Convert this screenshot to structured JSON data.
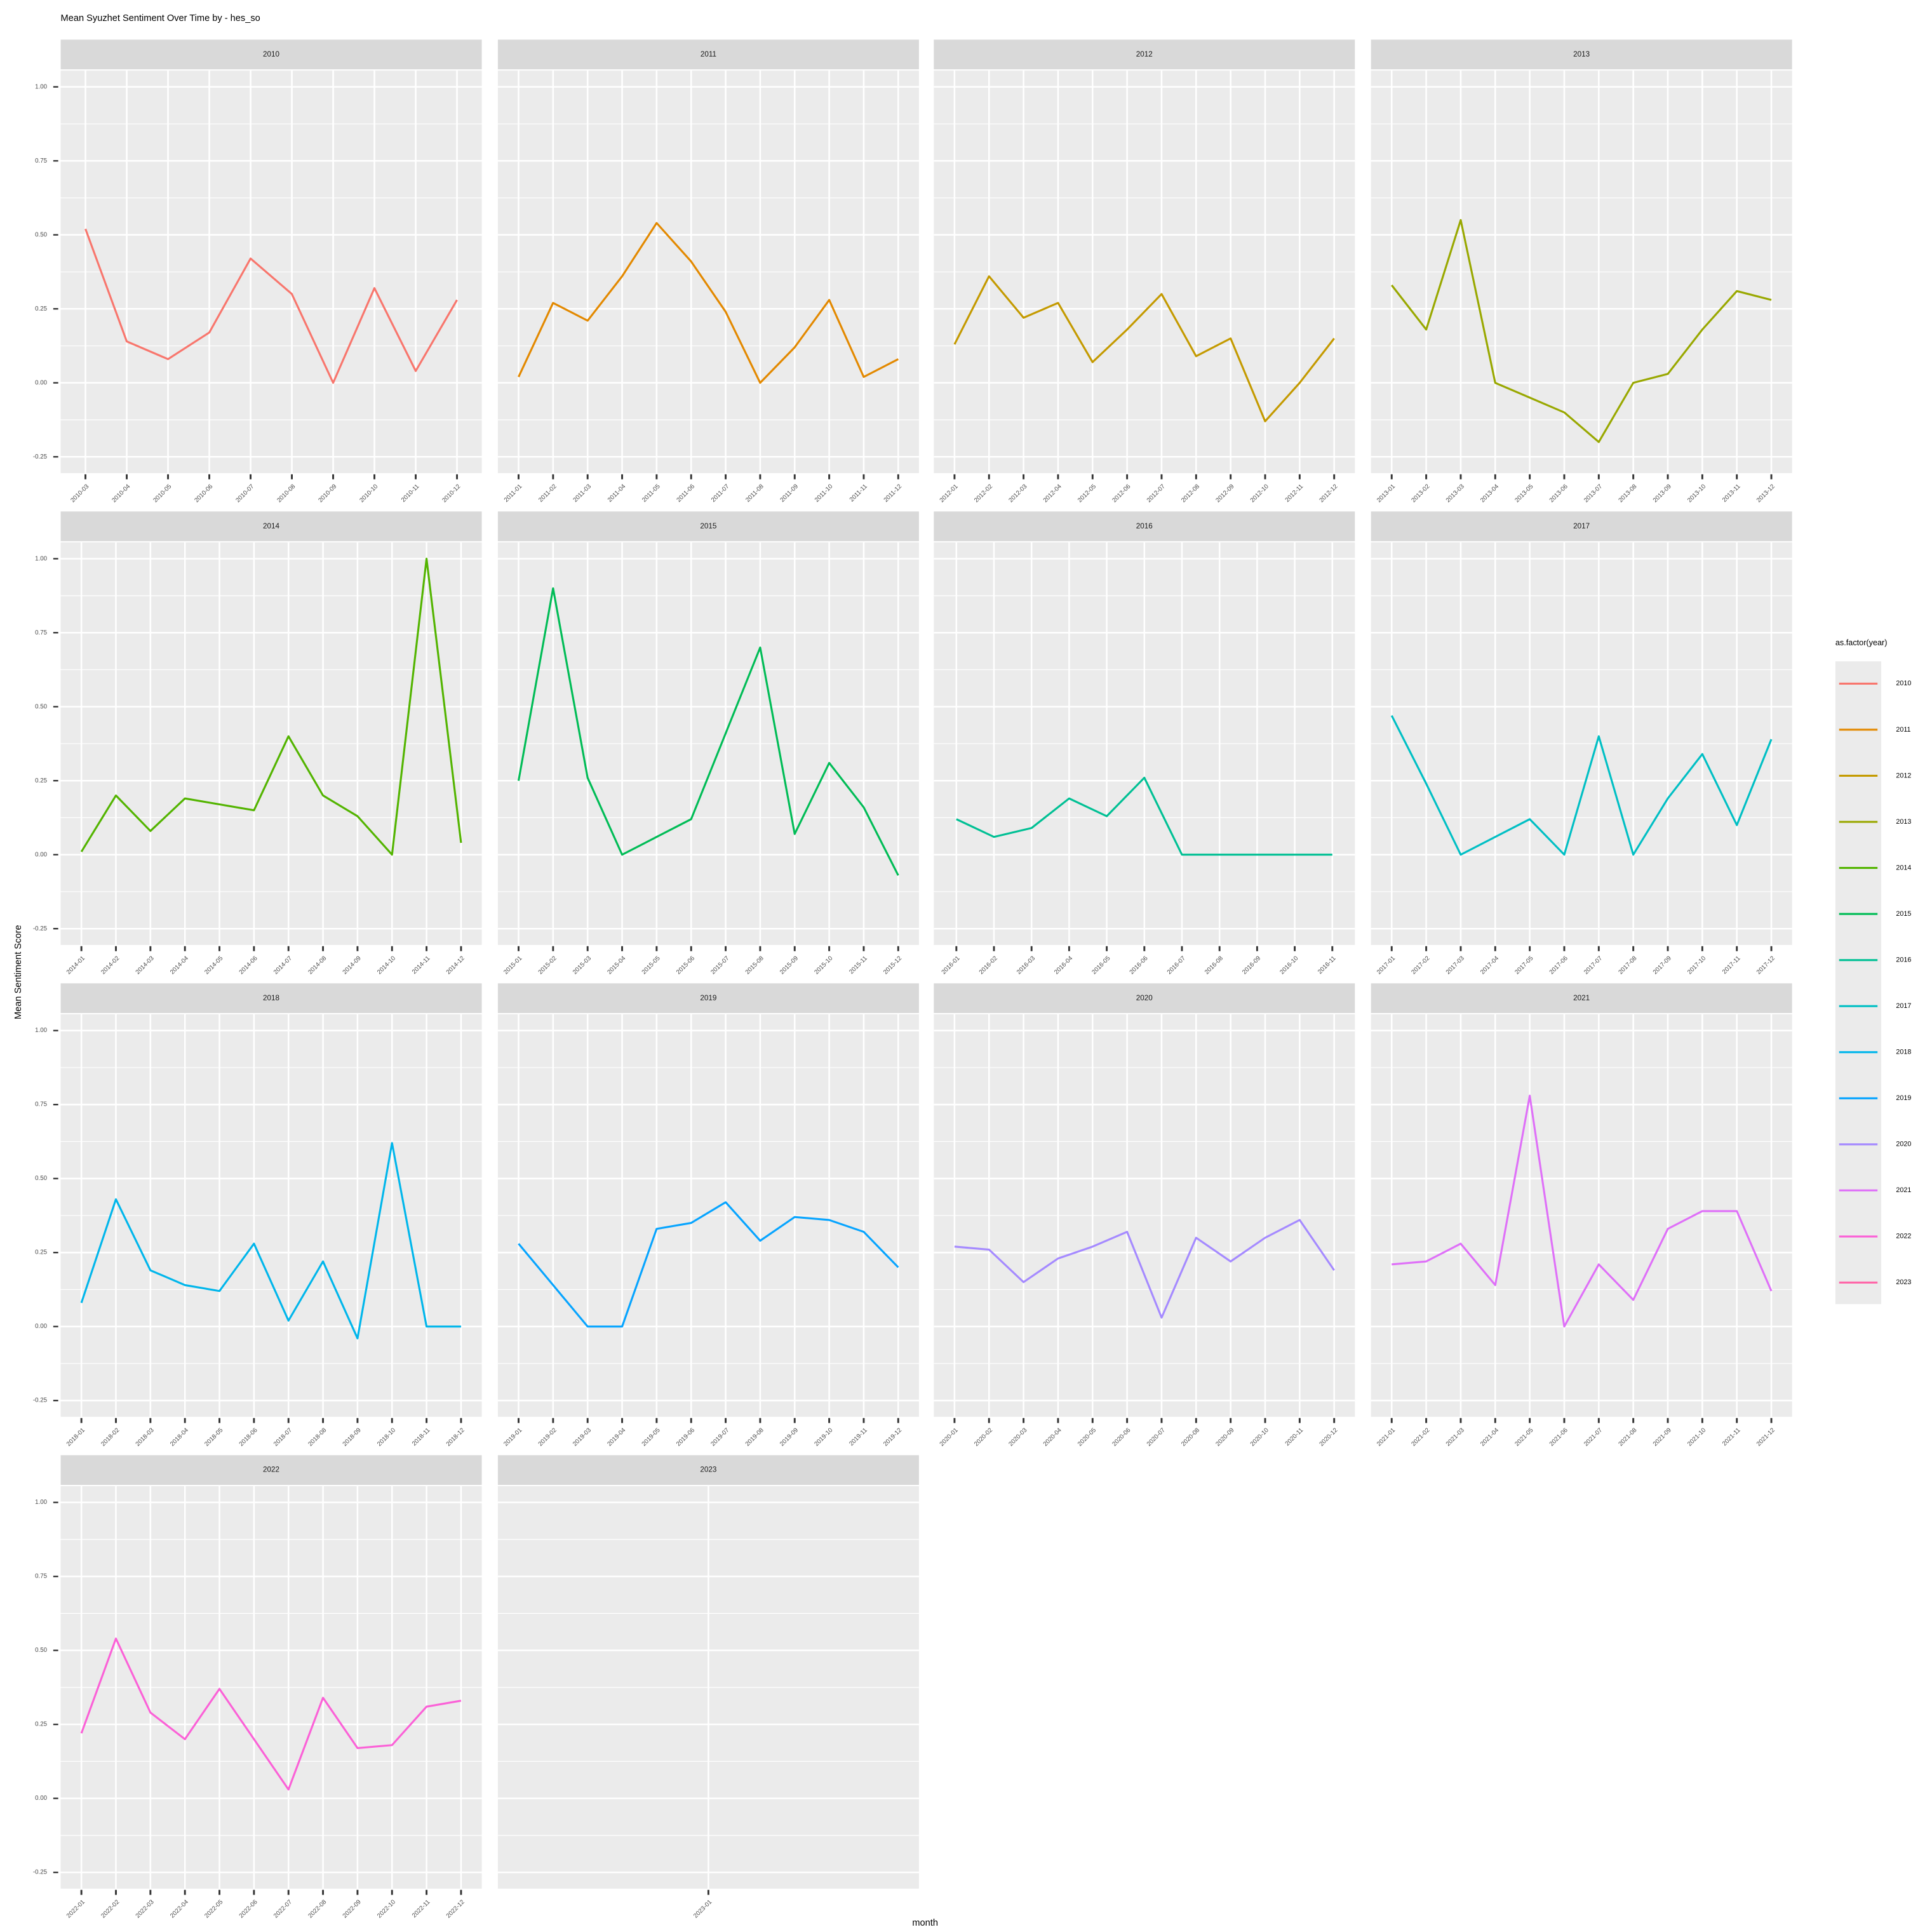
{
  "chart_data": {
    "type": "line",
    "title": "Mean Syuzhet Sentiment Over Time by - hes_so",
    "xlabel": "month",
    "ylabel": "Mean Sentiment Score",
    "legend_title": "as.factor(year)",
    "ylim": [
      -0.305,
      1.055
    ],
    "yticks": [
      {
        "value": -0.25,
        "label": "-0.25"
      },
      {
        "value": 0,
        "label": "0.00"
      },
      {
        "value": 0.25,
        "label": "0.25"
      },
      {
        "value": 0.5,
        "label": "0.50"
      },
      {
        "value": 0.75,
        "label": "0.75"
      },
      {
        "value": 1,
        "label": "1.00"
      }
    ],
    "series": [
      {
        "name": "2010",
        "color": "#F8766D",
        "categories": [
          "2010-03",
          "2010-04",
          "2010-05",
          "2010-06",
          "2010-07",
          "2010-08",
          "2010-09",
          "2010-10",
          "2010-11",
          "2010-12"
        ],
        "values": [
          0.52,
          0.14,
          0.08,
          0.17,
          0.42,
          0.3,
          0.0,
          0.32,
          0.04,
          0.28
        ]
      },
      {
        "name": "2011",
        "color": "#E38900",
        "categories": [
          "2011-01",
          "2011-02",
          "2011-03",
          "2011-04",
          "2011-05",
          "2011-06",
          "2011-07",
          "2011-08",
          "2011-09",
          "2011-10",
          "2011-11",
          "2011-12"
        ],
        "values": [
          0.02,
          0.27,
          0.21,
          0.36,
          0.54,
          0.41,
          0.24,
          0.0,
          0.12,
          0.28,
          0.02,
          0.08
        ]
      },
      {
        "name": "2012",
        "color": "#C49A00",
        "categories": [
          "2012-01",
          "2012-02",
          "2012-03",
          "2012-04",
          "2012-05",
          "2012-06",
          "2012-07",
          "2012-08",
          "2012-09",
          "2012-10",
          "2012-11",
          "2012-12"
        ],
        "values": [
          0.13,
          0.36,
          0.22,
          0.27,
          0.07,
          0.18,
          0.3,
          0.09,
          0.15,
          -0.13,
          0.0,
          0.15
        ]
      },
      {
        "name": "2013",
        "color": "#99A800",
        "categories": [
          "2013-01",
          "2013-02",
          "2013-03",
          "2013-04",
          "2013-05",
          "2013-06",
          "2013-07",
          "2013-08",
          "2013-09",
          "2013-10",
          "2013-11",
          "2013-12"
        ],
        "values": [
          0.33,
          0.18,
          0.55,
          0.0,
          -0.05,
          -0.1,
          -0.2,
          0.0,
          0.03,
          0.18,
          0.31,
          0.28
        ]
      },
      {
        "name": "2014",
        "color": "#53B400",
        "categories": [
          "2014-01",
          "2014-02",
          "2014-03",
          "2014-04",
          "2014-05",
          "2014-06",
          "2014-07",
          "2014-08",
          "2014-09",
          "2014-10",
          "2014-11",
          "2014-12"
        ],
        "values": [
          0.01,
          0.2,
          0.08,
          0.19,
          0.17,
          0.15,
          0.4,
          0.2,
          0.13,
          0.0,
          1.0,
          0.04
        ]
      },
      {
        "name": "2015",
        "color": "#00BC56",
        "categories": [
          "2015-01",
          "2015-02",
          "2015-03",
          "2015-04",
          "2015-05",
          "2015-06",
          "2015-07",
          "2015-08",
          "2015-09",
          "2015-10",
          "2015-11",
          "2015-12"
        ],
        "values": [
          0.25,
          0.9,
          0.26,
          0.0,
          0.06,
          0.12,
          0.41,
          0.7,
          0.07,
          0.31,
          0.16,
          -0.07
        ]
      },
      {
        "name": "2016",
        "color": "#00C094",
        "categories": [
          "2016-01",
          "2016-02",
          "2016-03",
          "2016-04",
          "2016-05",
          "2016-06",
          "2016-07",
          "2016-08",
          "2016-09",
          "2016-10",
          "2016-11"
        ],
        "values": [
          0.12,
          0.06,
          0.09,
          0.19,
          0.13,
          0.26,
          0,
          0,
          0,
          0,
          0
        ]
      },
      {
        "name": "2017",
        "color": "#00BFC4",
        "categories": [
          "2017-01",
          "2017-02",
          "2017-03",
          "2017-04",
          "2017-05",
          "2017-06",
          "2017-07",
          "2017-08",
          "2017-09",
          "2017-10",
          "2017-11",
          "2017-12"
        ],
        "values": [
          0.47,
          0.24,
          0.0,
          0.06,
          0.12,
          0.0,
          0.4,
          0.0,
          0.19,
          0.34,
          0.1,
          0.39
        ]
      },
      {
        "name": "2018",
        "color": "#00B6EB",
        "categories": [
          "2018-01",
          "2018-02",
          "2018-03",
          "2018-04",
          "2018-05",
          "2018-06",
          "2018-07",
          "2018-08",
          "2018-09",
          "2018-10",
          "2018-11",
          "2018-12"
        ],
        "values": [
          0.08,
          0.43,
          0.19,
          0.14,
          0.12,
          0.28,
          0.02,
          0.22,
          -0.04,
          0.62,
          0.0,
          0.0
        ]
      },
      {
        "name": "2019",
        "color": "#06A4FF",
        "categories": [
          "2019-01",
          "2019-02",
          "2019-03",
          "2019-04",
          "2019-05",
          "2019-06",
          "2019-07",
          "2019-08",
          "2019-09",
          "2019-10",
          "2019-11",
          "2019-12"
        ],
        "values": [
          0.28,
          0.14,
          0.0,
          0.0,
          0.33,
          0.35,
          0.42,
          0.29,
          0.37,
          0.36,
          0.32,
          0.2
        ]
      },
      {
        "name": "2020",
        "color": "#A58AFF",
        "categories": [
          "2020-01",
          "2020-02",
          "2020-03",
          "2020-04",
          "2020-05",
          "2020-06",
          "2020-07",
          "2020-08",
          "2020-09",
          "2020-10",
          "2020-11",
          "2020-12"
        ],
        "values": [
          0.27,
          0.26,
          0.15,
          0.23,
          0.27,
          0.32,
          0.03,
          0.3,
          0.22,
          0.3,
          0.36,
          0.19
        ]
      },
      {
        "name": "2021",
        "color": "#DF70F8",
        "categories": [
          "2021-01",
          "2021-02",
          "2021-03",
          "2021-04",
          "2021-05",
          "2021-06",
          "2021-07",
          "2021-08",
          "2021-09",
          "2021-10",
          "2021-11",
          "2021-12"
        ],
        "values": [
          0.21,
          0.22,
          0.28,
          0.14,
          0.78,
          0.0,
          0.21,
          0.09,
          0.33,
          0.39,
          0.39,
          0.12
        ]
      },
      {
        "name": "2022",
        "color": "#FB61D7",
        "categories": [
          "2022-01",
          "2022-02",
          "2022-03",
          "2022-04",
          "2022-05",
          "2022-06",
          "2022-07",
          "2022-08",
          "2022-09",
          "2022-10",
          "2022-11",
          "2022-12"
        ],
        "values": [
          0.22,
          0.54,
          0.29,
          0.2,
          0.37,
          0.2,
          0.03,
          0.34,
          0.17,
          0.18,
          0.31,
          0.33
        ]
      },
      {
        "name": "2023",
        "color": "#FF66A8",
        "categories": [
          "2023-01"
        ],
        "values": [
          null
        ]
      }
    ]
  }
}
